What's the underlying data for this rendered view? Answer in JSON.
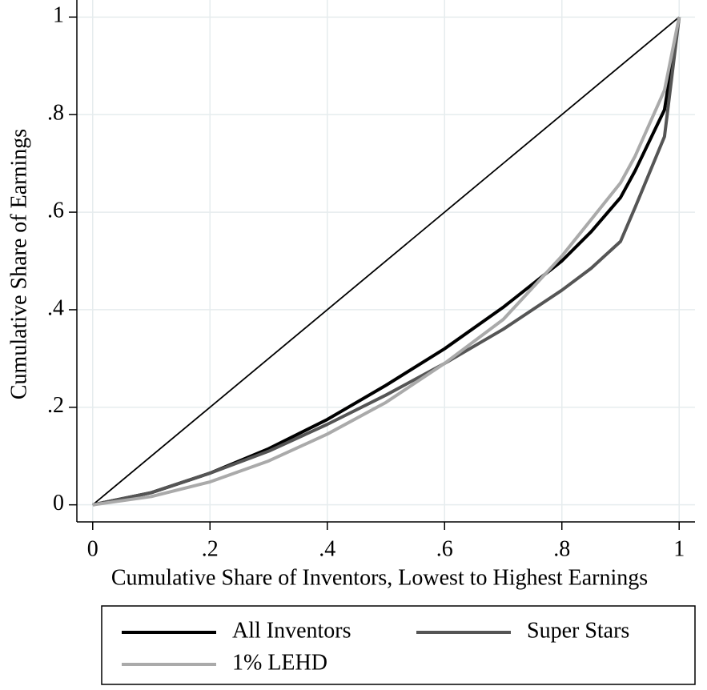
{
  "chart_data": {
    "type": "line",
    "x_label": "Cumulative Share of Inventors, Lowest to Highest Earnings",
    "y_label": "Cumulative Share of Earnings",
    "xlim": [
      -0.027,
      1.027
    ],
    "ylim": [
      -0.035,
      1.035
    ],
    "xticks": [
      0,
      {
        "value": 0.2,
        "label": ".2"
      },
      {
        "value": 0.4,
        "label": ".4"
      },
      {
        "value": 0.6,
        "label": ".6"
      },
      {
        "value": 0.8,
        "label": ".8"
      },
      1
    ],
    "yticks": [
      0,
      {
        "value": 0.2,
        "label": ".2"
      },
      {
        "value": 0.4,
        "label": ".4"
      },
      {
        "value": 0.6,
        "label": ".6"
      },
      {
        "value": 0.8,
        "label": ".8"
      },
      1
    ],
    "grid": true,
    "legend": "bottom",
    "series": [
      {
        "color": "#000000",
        "x": [
          0,
          1
        ],
        "values": [
          0,
          1
        ]
      },
      {
        "name": "All Inventors",
        "color": "#000000",
        "x": [
          0,
          0.1,
          0.2,
          0.3,
          0.4,
          0.5,
          0.6,
          0.7,
          0.8,
          0.85,
          0.9,
          0.925,
          0.975,
          1
        ],
        "values": [
          0,
          0.025,
          0.065,
          0.115,
          0.175,
          0.245,
          0.32,
          0.405,
          0.5,
          0.56,
          0.63,
          0.685,
          0.81,
          1
        ]
      },
      {
        "name": "Super Stars",
        "color": "#555555",
        "x": [
          0,
          0.1,
          0.2,
          0.3,
          0.4,
          0.5,
          0.6,
          0.7,
          0.8,
          0.85,
          0.9,
          0.925,
          0.975,
          1
        ],
        "values": [
          0,
          0.025,
          0.065,
          0.11,
          0.165,
          0.225,
          0.29,
          0.36,
          0.44,
          0.485,
          0.54,
          0.61,
          0.755,
          1
        ]
      },
      {
        "name": "1% LEHD",
        "color": "#aaaaaa",
        "x": [
          0,
          0.1,
          0.2,
          0.3,
          0.4,
          0.5,
          0.6,
          0.7,
          0.8,
          0.85,
          0.9,
          0.925,
          0.975,
          1
        ],
        "values": [
          0,
          0.017,
          0.047,
          0.09,
          0.145,
          0.21,
          0.29,
          0.38,
          0.51,
          0.585,
          0.66,
          0.715,
          0.85,
          1
        ]
      }
    ]
  }
}
